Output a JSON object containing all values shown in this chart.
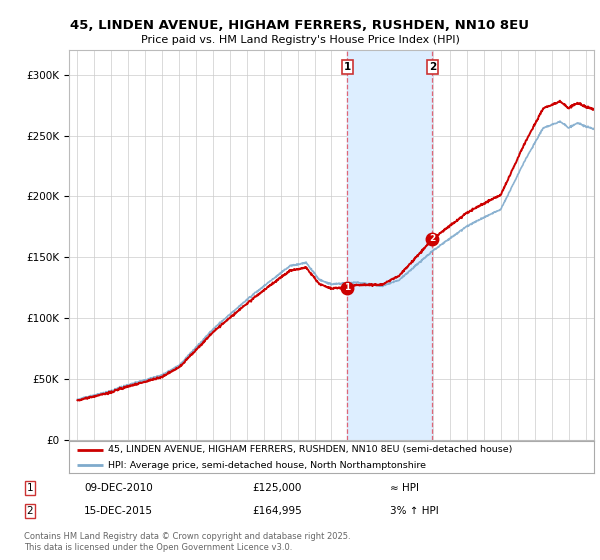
{
  "title": "45, LINDEN AVENUE, HIGHAM FERRERS, RUSHDEN, NN10 8EU",
  "subtitle": "Price paid vs. HM Land Registry's House Price Index (HPI)",
  "legend_line1": "45, LINDEN AVENUE, HIGHAM FERRERS, RUSHDEN, NN10 8EU (semi-detached house)",
  "legend_line2": "HPI: Average price, semi-detached house, North Northamptonshire",
  "footer": "Contains HM Land Registry data © Crown copyright and database right 2025.\nThis data is licensed under the Open Government Licence v3.0.",
  "sale1_date": "09-DEC-2010",
  "sale1_price": 125000,
  "sale2_date": "15-DEC-2015",
  "sale2_price": 164995,
  "sale1_x": 2010.94,
  "sale2_x": 2015.96,
  "yticks": [
    0,
    50000,
    100000,
    150000,
    200000,
    250000,
    300000
  ],
  "ytick_labels": [
    "£0",
    "£50K",
    "£100K",
    "£150K",
    "£200K",
    "£250K",
    "£300K"
  ],
  "bg_color": "#ffffff",
  "plot_bg_color": "#ffffff",
  "grid_color": "#cccccc",
  "red_color": "#cc0000",
  "blue_color": "#7faacc",
  "shade_color": "#ddeeff",
  "xmin": 1994.5,
  "xmax": 2025.5,
  "ymin": 0,
  "ymax": 320000,
  "table_row1": [
    "1",
    "09-DEC-2010",
    "£125,000",
    "≈ HPI"
  ],
  "table_row2": [
    "2",
    "15-DEC-2015",
    "£164,995",
    "3% ↑ HPI"
  ]
}
